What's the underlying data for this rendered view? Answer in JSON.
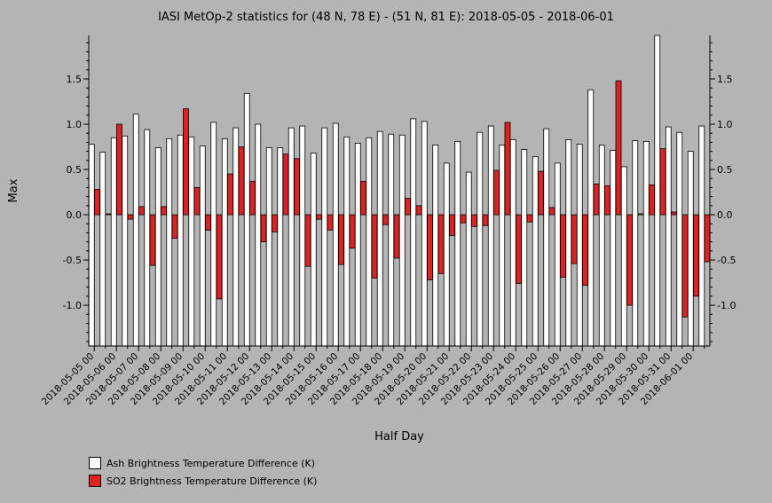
{
  "chart_data": {
    "type": "bar",
    "title": "IASI MetOp-2 statistics for (48 N, 78 E) - (51 N, 81 E): 2018-05-05 - 2018-06-01",
    "xlabel": "Half Day",
    "ylabel": "Max",
    "ylim": [
      -1.45,
      1.98
    ],
    "yticks": [
      -1.0,
      -0.5,
      0.0,
      0.5,
      1.0,
      1.5
    ],
    "ytick_labels": [
      "-1.0",
      "-0.5",
      "0.0",
      "0.5",
      "1.0",
      "1.5"
    ],
    "categories": [
      "2018-05-05 00",
      "2018-05-05 12",
      "2018-05-06 00",
      "2018-05-06 12",
      "2018-05-07 00",
      "2018-05-07 12",
      "2018-05-08 00",
      "2018-05-08 12",
      "2018-05-09 00",
      "2018-05-09 12",
      "2018-05-10 00",
      "2018-05-10 12",
      "2018-05-11 00",
      "2018-05-11 12",
      "2018-05-12 00",
      "2018-05-12 12",
      "2018-05-13 00",
      "2018-05-13 12",
      "2018-05-14 00",
      "2018-05-14 12",
      "2018-05-15 00",
      "2018-05-15 12",
      "2018-05-16 00",
      "2018-05-16 12",
      "2018-05-17 00",
      "2018-05-17 12",
      "2018-05-18 00",
      "2018-05-18 12",
      "2018-05-19 00",
      "2018-05-19 12",
      "2018-05-20 00",
      "2018-05-20 12",
      "2018-05-21 00",
      "2018-05-21 12",
      "2018-05-22 00",
      "2018-05-22 12",
      "2018-05-23 00",
      "2018-05-23 12",
      "2018-05-24 00",
      "2018-05-24 12",
      "2018-05-25 00",
      "2018-05-25 12",
      "2018-05-26 00",
      "2018-05-26 12",
      "2018-05-27 00",
      "2018-05-27 12",
      "2018-05-28 00",
      "2018-05-28 12",
      "2018-05-29 00",
      "2018-05-29 12",
      "2018-05-30 00",
      "2018-05-30 12",
      "2018-05-31 00",
      "2018-05-31 12",
      "2018-06-01 00",
      "2018-06-01 12"
    ],
    "xtick_labels": [
      "2018-05-05 00",
      "2018-05-06 00",
      "2018-05-07 00",
      "2018-05-08 00",
      "2018-05-09 00",
      "2018-05-10 00",
      "2018-05-11 00",
      "2018-05-12 00",
      "2018-05-13 00",
      "2018-05-14 00",
      "2018-05-15 00",
      "2018-05-16 00",
      "2018-05-17 00",
      "2018-05-18 00",
      "2018-05-19 00",
      "2018-05-20 00",
      "2018-05-21 00",
      "2018-05-22 00",
      "2018-05-23 00",
      "2018-05-24 00",
      "2018-05-25 00",
      "2018-05-26 00",
      "2018-05-27 00",
      "2018-05-28 00",
      "2018-05-29 00",
      "2018-05-30 00",
      "2018-05-31 00",
      "2018-06-01 00"
    ],
    "series": [
      {
        "name": "Ash Brightness Temperature Difference (K)",
        "color": "#ffffff",
        "values": [
          0.78,
          0.69,
          0.85,
          0.87,
          1.11,
          0.94,
          0.74,
          0.84,
          0.88,
          0.86,
          0.76,
          1.02,
          0.84,
          0.96,
          1.34,
          1.0,
          0.74,
          0.74,
          0.96,
          0.98,
          0.68,
          0.96,
          1.01,
          0.86,
          0.79,
          0.85,
          0.92,
          0.89,
          0.88,
          1.06,
          1.03,
          0.77,
          0.57,
          0.81,
          0.47,
          0.91,
          0.98,
          0.77,
          0.83,
          0.72,
          0.64,
          0.95,
          0.57,
          0.83,
          0.78,
          1.38,
          0.77,
          0.71,
          0.53,
          0.82,
          0.81,
          1.98,
          0.97,
          0.91,
          0.7,
          0.98
        ]
      },
      {
        "name": "SO2 Brightness Temperature Difference (K)",
        "color": "#dd2222",
        "values": [
          0.28,
          0.01,
          1.0,
          -0.05,
          0.09,
          -0.56,
          0.09,
          -0.26,
          1.17,
          0.3,
          -0.17,
          -0.93,
          0.45,
          0.75,
          0.37,
          -0.3,
          -0.19,
          0.67,
          0.62,
          -0.57,
          -0.05,
          -0.17,
          -0.55,
          -0.37,
          0.37,
          -0.7,
          -0.11,
          -0.48,
          0.18,
          0.1,
          -0.72,
          -0.65,
          -0.23,
          -0.09,
          -0.13,
          -0.12,
          0.49,
          1.02,
          -0.76,
          -0.08,
          0.48,
          0.08,
          -0.69,
          -0.54,
          -0.78,
          0.34,
          0.32,
          1.48,
          -1.0,
          0.01,
          0.33,
          0.73,
          0.03,
          -1.13,
          -0.9,
          -0.52
        ]
      }
    ],
    "grid": false,
    "legend_position": "bottom-left"
  }
}
